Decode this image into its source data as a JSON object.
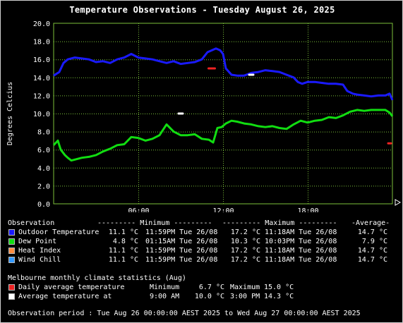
{
  "colors": {
    "outdoor": "#1a1aff",
    "dew": "#11dd11",
    "heat": "#ff8c40",
    "wind": "#3399ff",
    "daily_avg": "#ee2222",
    "avg_at": "#ffffff",
    "grid": "#7bbf3a"
  },
  "chart_data": {
    "type": "line",
    "title": "Temperature Observations - Tuesday August 26, 2025",
    "ylabel": "Degrees Celcius",
    "ylim": [
      0,
      20
    ],
    "xlim": [
      0,
      24
    ],
    "y_ticks": [
      "0.0",
      "2.0",
      "4.0",
      "6.0",
      "8.0",
      "10.0",
      "12.0",
      "14.0",
      "16.0",
      "18.0",
      "20.0"
    ],
    "x_ticks": [
      {
        "hour": 6,
        "label": "06:00"
      },
      {
        "hour": 12,
        "label": "12:00"
      },
      {
        "hour": 18,
        "label": "18:00"
      }
    ],
    "series": [
      {
        "name": "Outdoor Temperature",
        "color_key": "outdoor",
        "x": [
          0,
          0.4,
          0.7,
          1.0,
          1.5,
          2.0,
          2.5,
          3.0,
          3.5,
          4.0,
          4.5,
          5.0,
          5.5,
          6.0,
          6.5,
          7.0,
          7.5,
          8.0,
          8.5,
          9.0,
          9.5,
          10.0,
          10.5,
          10.9,
          11.2,
          11.5,
          11.8,
          12.0,
          12.2,
          12.6,
          13.0,
          13.5,
          14.0,
          14.5,
          15.0,
          15.5,
          16.0,
          16.5,
          17.0,
          17.3,
          17.6,
          18.0,
          18.5,
          19.0,
          19.5,
          20.0,
          20.5,
          20.8,
          21.2,
          21.5,
          22.0,
          22.5,
          23.0,
          23.5,
          23.8,
          24.0
        ],
        "y": [
          14.2,
          14.6,
          15.6,
          16.0,
          16.2,
          16.1,
          16.0,
          15.7,
          15.8,
          15.6,
          16.0,
          16.2,
          16.6,
          16.2,
          16.1,
          16.0,
          15.8,
          15.6,
          15.8,
          15.5,
          15.6,
          15.7,
          16.0,
          16.8,
          17.0,
          17.2,
          17.0,
          16.6,
          15.0,
          14.3,
          14.2,
          14.2,
          14.5,
          14.6,
          14.8,
          14.7,
          14.6,
          14.3,
          14.0,
          13.5,
          13.3,
          13.5,
          13.5,
          13.4,
          13.3,
          13.3,
          13.2,
          12.5,
          12.2,
          12.1,
          12.0,
          11.9,
          12.0,
          12.0,
          12.2,
          11.5
        ]
      },
      {
        "name": "Dew Point",
        "color_key": "dew",
        "x": [
          0,
          0.3,
          0.5,
          0.8,
          1.0,
          1.25,
          1.5,
          2.0,
          2.5,
          3.0,
          3.5,
          4.0,
          4.5,
          5.0,
          5.5,
          6.0,
          6.5,
          7.0,
          7.5,
          8.0,
          8.5,
          9.0,
          9.5,
          10.0,
          10.5,
          11.0,
          11.3,
          11.6,
          11.9,
          12.2,
          12.6,
          13.0,
          13.5,
          14.0,
          14.5,
          15.0,
          15.5,
          16.0,
          16.5,
          17.0,
          17.5,
          18.0,
          18.5,
          19.0,
          19.5,
          20.0,
          20.5,
          21.0,
          21.5,
          22.0,
          22.5,
          23.0,
          23.5,
          23.8,
          24.0
        ],
        "y": [
          6.5,
          7.0,
          6.0,
          5.4,
          5.1,
          4.8,
          4.9,
          5.1,
          5.2,
          5.4,
          5.8,
          6.1,
          6.5,
          6.6,
          7.4,
          7.3,
          7.0,
          7.2,
          7.6,
          8.8,
          8.0,
          7.6,
          7.6,
          7.7,
          7.2,
          7.1,
          6.8,
          8.4,
          8.5,
          8.9,
          9.2,
          9.1,
          8.9,
          8.8,
          8.6,
          8.5,
          8.6,
          8.4,
          8.3,
          8.8,
          9.2,
          9.0,
          9.2,
          9.3,
          9.6,
          9.5,
          9.8,
          10.2,
          10.4,
          10.3,
          10.4,
          10.4,
          10.4,
          10.1,
          9.7
        ]
      }
    ],
    "markers": [
      {
        "hour": 11.2,
        "value": 15.0,
        "color_key": "daily_avg",
        "width_h": 0.45
      },
      {
        "hour": 23.8,
        "value": 6.7,
        "color_key": "daily_avg",
        "width_h": 0.2
      },
      {
        "hour": 14.0,
        "value": 14.3,
        "color_key": "avg_at",
        "width_h": 0.3
      },
      {
        "hour": 9.0,
        "value": 10.0,
        "color_key": "avg_at",
        "width_h": 0.3
      }
    ]
  },
  "observations": {
    "header": {
      "observation": "Observation",
      "minimum": "--------- Minimum ---------",
      "maximum": "--------- Maximum ---------",
      "average": "-Average-"
    },
    "rows": [
      {
        "label": "Outdoor Temperature",
        "color_key": "outdoor",
        "min": "11.1 °C",
        "min_time": "11:59PM Tue 26/08",
        "max": "17.2 °C",
        "max_time": "11:18AM Tue 26/08",
        "avg": "14.7 °C"
      },
      {
        "label": "Dew Point",
        "color_key": "dew",
        "min": "4.8 °C",
        "min_time": "01:15AM Tue 26/08",
        "max": "10.3 °C",
        "max_time": "10:03PM Tue 26/08",
        "avg": "7.9 °C"
      },
      {
        "label": "Heat Index",
        "color_key": "heat",
        "min": "11.1 °C",
        "min_time": "11:59PM Tue 26/08",
        "max": "17.2 °C",
        "max_time": "11:18AM Tue 26/08",
        "avg": "14.7 °C"
      },
      {
        "label": "Wind Chill",
        "color_key": "wind",
        "min": "11.1 °C",
        "min_time": "11:59PM Tue 26/08",
        "max": "17.2 °C",
        "max_time": "11:18AM Tue 26/08",
        "avg": "14.7 °C"
      }
    ]
  },
  "climate": {
    "title": "Melbourne monthly climate statistics (Aug)",
    "rows": [
      {
        "label": "Daily average temperature",
        "color_key": "daily_avg",
        "col1": "Minimum",
        "val1": "6.7 °C",
        "col2": "Maximum",
        "val2": "15.0 °C"
      },
      {
        "label": "Average temperature at",
        "color_key": "avg_at",
        "col1": "9:00 AM",
        "val1": "10.0 °C",
        "col2": "3:00 PM",
        "val2": "14.3 °C"
      }
    ]
  },
  "footer": "Observation period : Tue Aug 26 00:00:00 AEST 2025 to Wed Aug 27 00:00:00 AEST 2025"
}
